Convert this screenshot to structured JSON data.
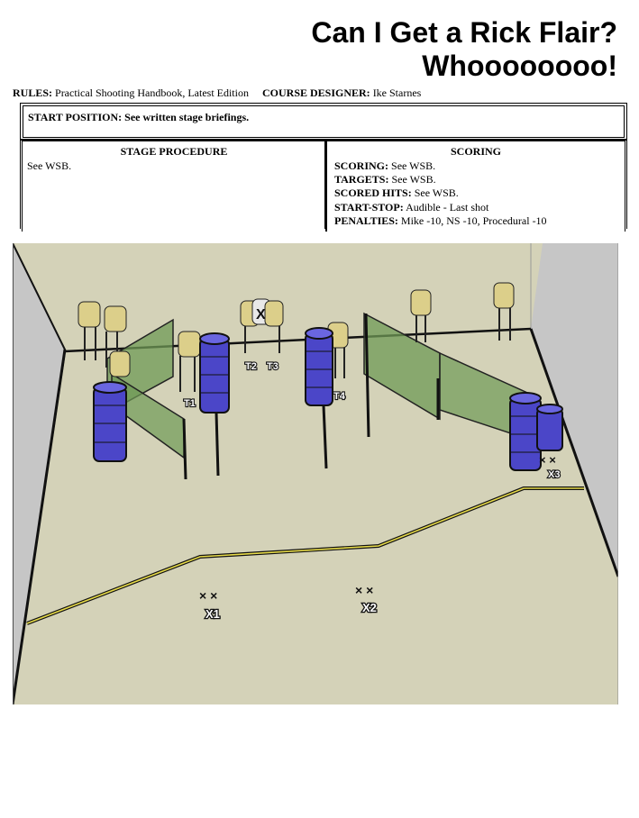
{
  "title": {
    "line1": "Can I Get a Rick Flair?",
    "line2": "Whoooooooo!"
  },
  "rules": {
    "label": "RULES:",
    "value": "Practical Shooting Handbook, Latest Edition",
    "designer_label": "COURSE DESIGNER:",
    "designer_value": "Ike Starnes"
  },
  "start_position": {
    "label": "START POSITION: See written stage briefings."
  },
  "procedure": {
    "header": "STAGE PROCEDURE",
    "text": "See WSB."
  },
  "scoring": {
    "header": "SCORING",
    "rows": [
      {
        "label": "SCORING:",
        "value": "See WSB."
      },
      {
        "label": "TARGETS:",
        "value": "See WSB."
      },
      {
        "label": "SCORED HITS:",
        "value": "See WSB."
      },
      {
        "label": "START-STOP:",
        "value": "Audible - Last shot"
      },
      {
        "label": "PENALTIES:",
        "value": "Mike -10, NS -10, Procedural -10"
      }
    ]
  },
  "diagram": {
    "target_labels": [
      "T1",
      "T2",
      "T3",
      "T4"
    ],
    "position_labels": [
      "X1",
      "X2",
      "X3"
    ],
    "colors": {
      "floor": "#d4d2b8",
      "wall": "#c4c4c4",
      "barrel": "#4b46c8",
      "wall_panel": "#6f9a55",
      "target": "#dccf8a",
      "fault_line": "#e8dc4a"
    }
  }
}
